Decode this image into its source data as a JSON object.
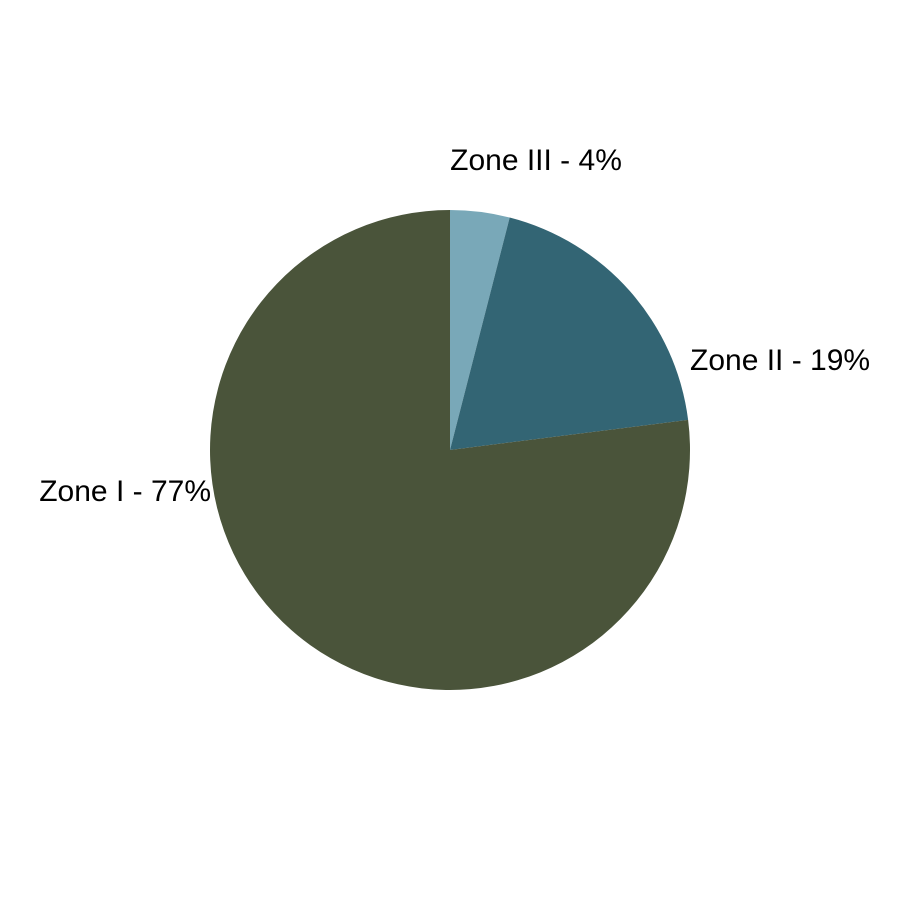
{
  "chart_data": {
    "type": "pie",
    "slices": [
      {
        "label": "Zone III - 4%",
        "value": 4,
        "color": "#79a8b8"
      },
      {
        "label": "Zone II - 19%",
        "value": 19,
        "color": "#336574"
      },
      {
        "label": "Zone I - 77%",
        "value": 77,
        "color": "#4a543a"
      }
    ],
    "start_angle": "12 o'clock",
    "direction": "clockwise",
    "legend": "none"
  }
}
